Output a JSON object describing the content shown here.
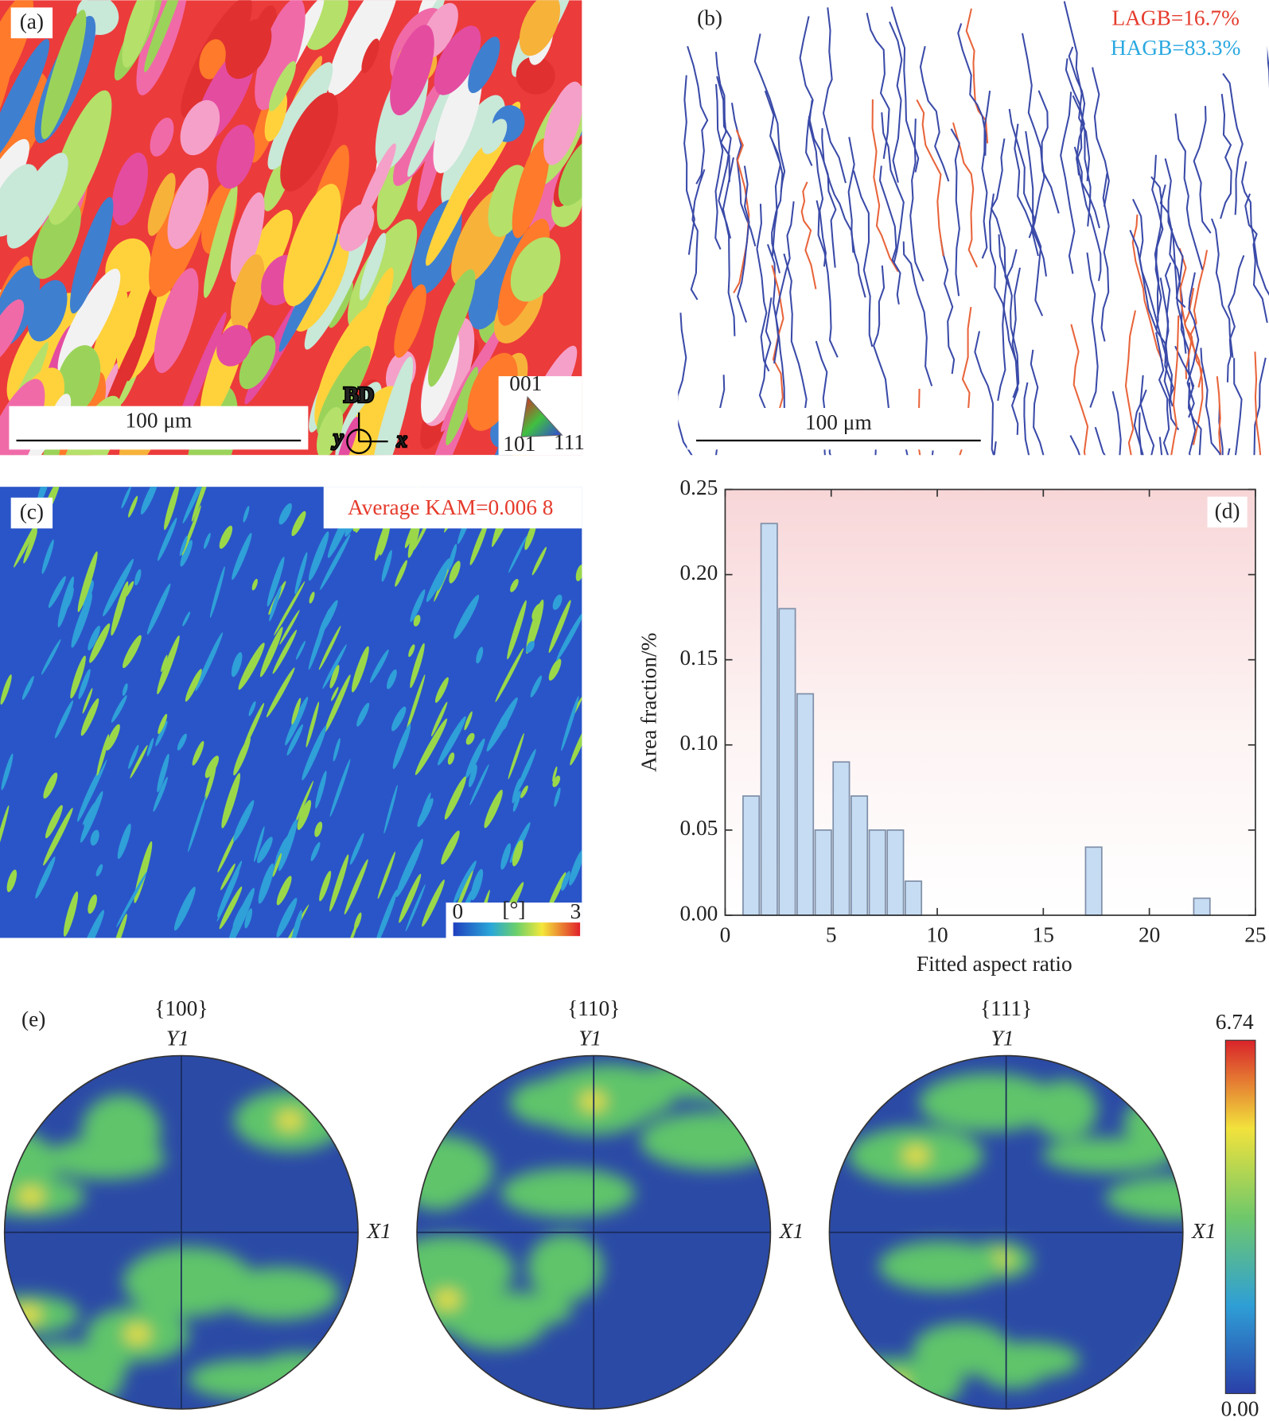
{
  "panels": {
    "a": {
      "label": "(a)",
      "scale_bar": "100 μm",
      "direction": "BD",
      "axis_y": "y",
      "axis_x": "x",
      "legend_top": "001",
      "legend_left": "101",
      "legend_right": "111"
    },
    "b": {
      "label": "(b)",
      "lagb": "LAGB=16.7%",
      "hagb": "HAGB=83.3%",
      "scale_bar": "100 μm"
    },
    "c": {
      "label": "(c)",
      "annotation": "Average KAM=0.006 8",
      "colorbar_min": "0",
      "colorbar_unit": "[°]",
      "colorbar_max": "3"
    },
    "e": {
      "label": "(e)",
      "pole_figures": [
        {
          "title": "{100}",
          "y_axis": "Y1",
          "x_axis": "X1"
        },
        {
          "title": "{110}",
          "y_axis": "Y1",
          "x_axis": "X1"
        },
        {
          "title": "{111}",
          "y_axis": "Y1",
          "x_axis": "X1"
        }
      ],
      "colorbar_max": "6.74",
      "colorbar_min": "0.00"
    }
  },
  "chart_data": {
    "type": "histogram",
    "label": "(d)",
    "xlabel": "Fitted aspect ratio",
    "ylabel": "Area fraction/%",
    "bins": [
      0.8,
      1.65,
      2.5,
      3.35,
      4.2,
      5.05,
      5.9,
      6.75,
      7.6,
      8.45,
      9.3,
      10.15,
      11,
      11.85,
      12.7,
      13.55,
      14.4,
      15.25,
      16.1,
      16.95,
      17.8,
      18.65,
      19.5,
      20.35,
      21.2,
      22.05,
      22.9
    ],
    "values": [
      0.07,
      0.23,
      0.18,
      0.13,
      0.05,
      0.09,
      0.07,
      0.05,
      0.05,
      0.02,
      0,
      0,
      0,
      0,
      0,
      0,
      0,
      0,
      0,
      0.04,
      0,
      0,
      0,
      0,
      0,
      0.01
    ],
    "color": "#c5dcf2",
    "xlim": [
      0,
      25
    ],
    "xticks": [
      0,
      5,
      10,
      15,
      20,
      25
    ],
    "ylim": [
      0,
      0.25
    ],
    "yticks": [
      {
        "value": 0,
        "label": "0.00"
      },
      0.05,
      {
        "value": 0.1,
        "label": "0.10"
      },
      0.15,
      {
        "value": 0.2,
        "label": "0.20"
      },
      0.25
    ]
  }
}
